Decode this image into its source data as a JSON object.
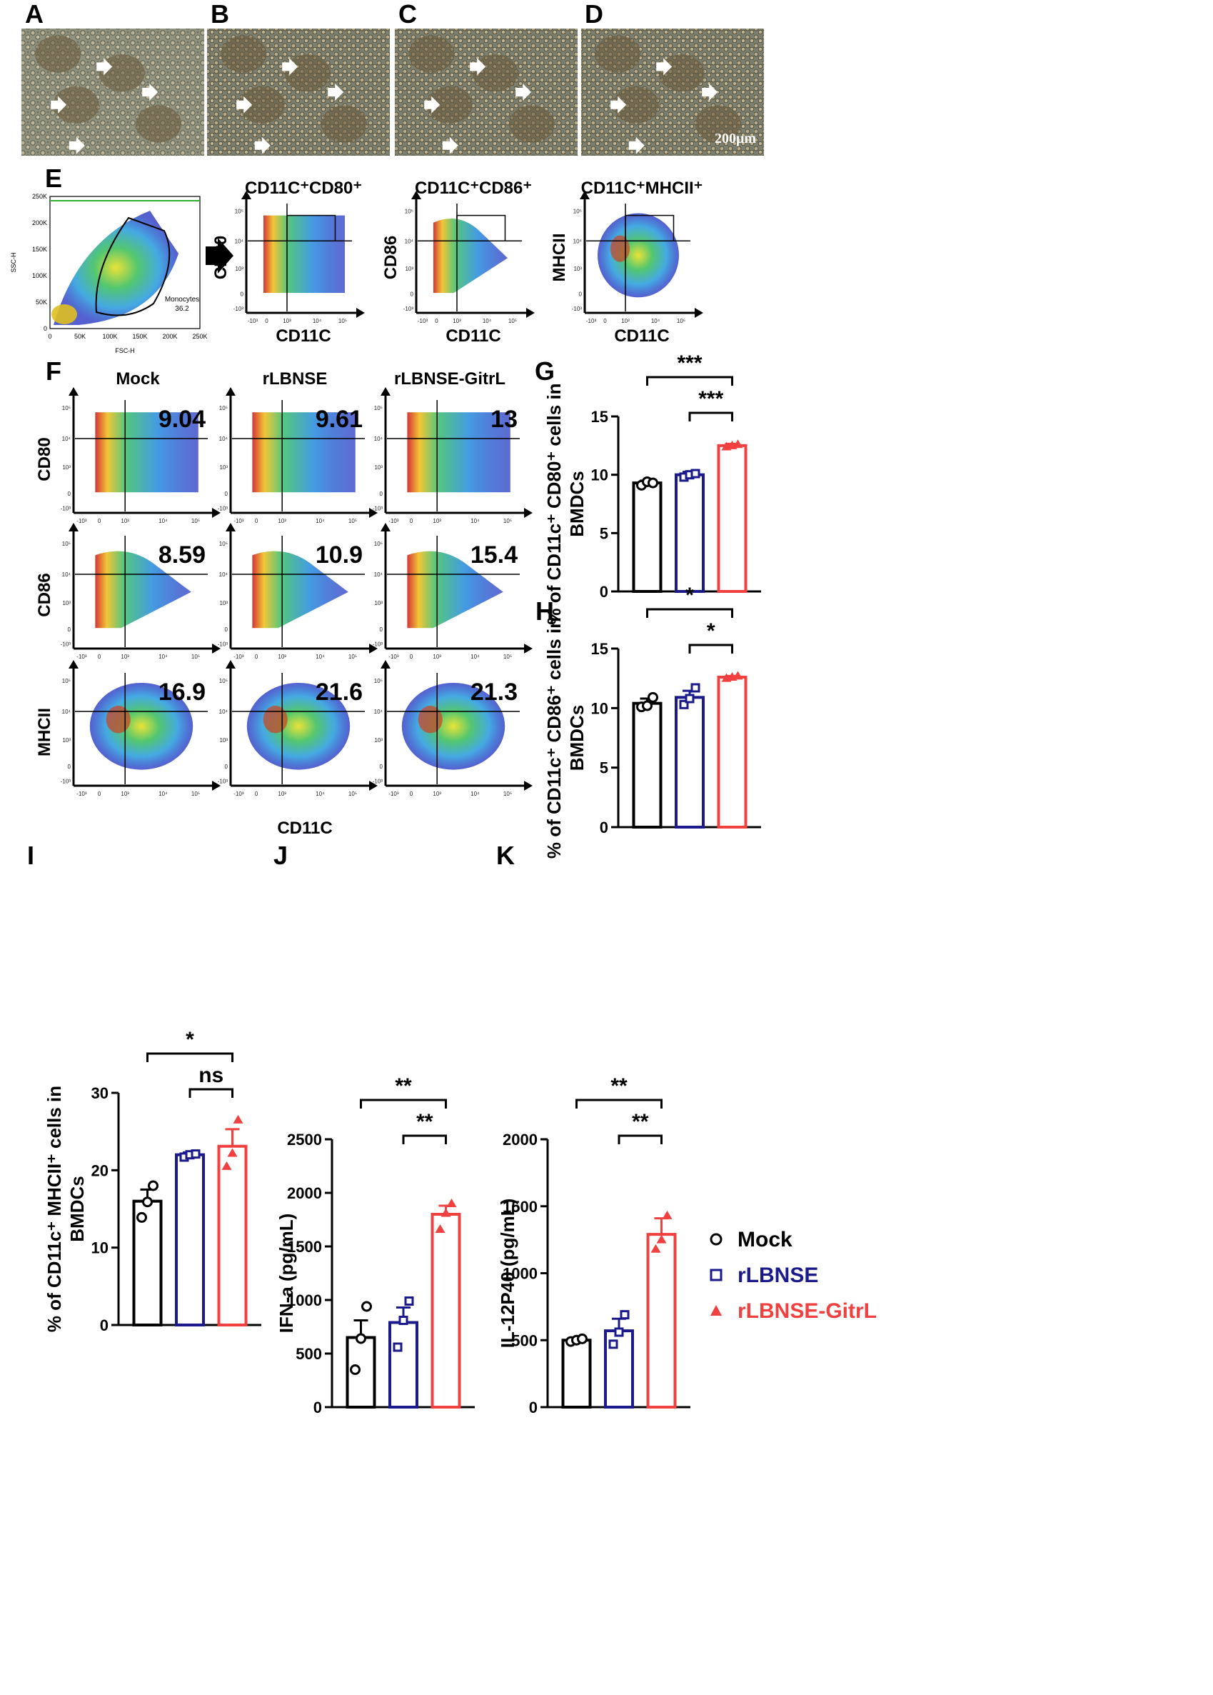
{
  "colors": {
    "mock": "#000000",
    "rlbnse": "#1a1a8c",
    "gitrl": "#f04040",
    "micro_bg": "#8a8f7a"
  },
  "micrographs": {
    "panels": [
      "A",
      "B",
      "C",
      "D"
    ],
    "scale_bar": "200μm"
  },
  "panel_e": {
    "letter": "E",
    "gate": {
      "x_label": "FSC-H",
      "y_label": "SSC-H",
      "gate_name": "Monocytes",
      "gate_value": "36.2",
      "x_ticks": [
        "0",
        "50K",
        "100K",
        "150K",
        "200K",
        "250K"
      ],
      "y_ticks": [
        "0",
        "50K",
        "100K",
        "150K",
        "200K",
        "250K"
      ]
    },
    "plots": [
      {
        "title": "CD11C⁺CD80⁺",
        "y_label": "CD80",
        "x_label": "CD11C",
        "shape": "rect"
      },
      {
        "title": "CD11C⁺CD86⁺",
        "y_label": "CD86",
        "x_label": "CD11C",
        "shape": "tri"
      },
      {
        "title": "CD11C⁺MHCII⁺",
        "y_label": "MHCII",
        "x_label": "CD11C",
        "shape": "blob"
      }
    ],
    "log_ticks_x": [
      "-10³",
      "0",
      "10³",
      "10⁴",
      "10⁵"
    ],
    "log_ticks_y": [
      "10⁵",
      "10⁴",
      "10³",
      "0",
      "-10³"
    ]
  },
  "panel_f": {
    "letter": "F",
    "columns": [
      "Mock",
      "rLBNSE",
      "rLBNSE-GitrL"
    ],
    "rows": [
      {
        "marker": "CD80",
        "values": [
          "9.04",
          "9.61",
          "13"
        ],
        "shape": "rect"
      },
      {
        "marker": "CD86",
        "values": [
          "8.59",
          "10.9",
          "15.4"
        ],
        "shape": "tri"
      },
      {
        "marker": "MHCII",
        "values": [
          "16.9",
          "21.6",
          "21.3"
        ],
        "shape": "blob"
      }
    ],
    "x_label": "CD11C"
  },
  "chart_data": [
    {
      "panel": "G",
      "type": "bar",
      "categories": [
        "Mock",
        "rLBNSE",
        "rLBNSE-GitrL"
      ],
      "values": [
        9.3,
        10.0,
        12.5
      ],
      "errors": [
        0.2,
        0.25,
        0.15
      ],
      "points": [
        [
          9.1,
          9.4,
          9.3
        ],
        [
          9.8,
          10.0,
          10.1
        ],
        [
          12.4,
          12.5,
          12.6
        ]
      ],
      "ylabel": "% of CD11c⁺ CD80⁺ cells in BMDCs",
      "ylim": [
        0,
        15
      ],
      "yticks": [
        0,
        5,
        10,
        15
      ],
      "significance": [
        {
          "from": 0,
          "to": 2,
          "label": "***"
        },
        {
          "from": 1,
          "to": 2,
          "label": "***"
        }
      ]
    },
    {
      "panel": "H",
      "type": "bar",
      "categories": [
        "Mock",
        "rLBNSE",
        "rLBNSE-GitrL"
      ],
      "values": [
        10.4,
        10.9,
        12.6
      ],
      "errors": [
        0.4,
        0.55,
        0.1
      ],
      "points": [
        [
          10.1,
          10.2,
          10.9
        ],
        [
          10.3,
          10.8,
          11.7
        ],
        [
          12.5,
          12.6,
          12.7
        ]
      ],
      "ylabel": "% of CD11c⁺ CD86⁺ cells in BMDCs",
      "ylim": [
        0,
        15
      ],
      "yticks": [
        0,
        5,
        10,
        15
      ],
      "significance": [
        {
          "from": 0,
          "to": 2,
          "label": "*"
        },
        {
          "from": 1,
          "to": 2,
          "label": "*"
        }
      ]
    },
    {
      "panel": "I",
      "type": "bar",
      "categories": [
        "Mock",
        "rLBNSE",
        "rLBNSE-GitrL"
      ],
      "values": [
        16.0,
        22.0,
        23.1
      ],
      "errors": [
        1.5,
        0.3,
        2.2
      ],
      "points": [
        [
          13.9,
          15.9,
          18.0
        ],
        [
          21.7,
          22.0,
          22.1
        ],
        [
          20.5,
          22.2,
          26.5
        ]
      ],
      "ylabel": "% of CD11c⁺ MHCII⁺ cells in BMDCs",
      "ylim": [
        0,
        30
      ],
      "yticks": [
        0,
        10,
        20,
        30
      ],
      "significance": [
        {
          "from": 0,
          "to": 2,
          "label": "*"
        },
        {
          "from": 1,
          "to": 2,
          "label": "ns"
        }
      ]
    },
    {
      "panel": "J",
      "type": "bar",
      "categories": [
        "Mock",
        "rLBNSE",
        "rLBNSE-GitrL"
      ],
      "values": [
        650,
        790,
        1800
      ],
      "errors": [
        160,
        140,
        80
      ],
      "points": [
        [
          350,
          640,
          940
        ],
        [
          560,
          810,
          990
        ],
        [
          1660,
          1810,
          1900
        ]
      ],
      "ylabel": "IFN-a (pg/mL)",
      "ylim": [
        0,
        2500
      ],
      "yticks": [
        0,
        500,
        1000,
        1500,
        2000,
        2500
      ],
      "significance": [
        {
          "from": 0,
          "to": 2,
          "label": "**"
        },
        {
          "from": 1,
          "to": 2,
          "label": "**"
        }
      ]
    },
    {
      "panel": "K",
      "type": "bar",
      "categories": [
        "Mock",
        "rLBNSE",
        "rLBNSE-GitrL"
      ],
      "values": [
        500,
        570,
        1290
      ],
      "errors": [
        20,
        90,
        120
      ],
      "points": [
        [
          490,
          500,
          510
        ],
        [
          470,
          560,
          690
        ],
        [
          1180,
          1250,
          1430
        ]
      ],
      "ylabel": "IL-12P40 (pg/mL)",
      "ylim": [
        0,
        2000
      ],
      "yticks": [
        0,
        500,
        1000,
        1500,
        2000
      ],
      "significance": [
        {
          "from": 0,
          "to": 2,
          "label": "**"
        },
        {
          "from": 1,
          "to": 2,
          "label": "**"
        }
      ]
    }
  ],
  "legend": [
    {
      "label": "Mock",
      "marker": "circle"
    },
    {
      "label": "rLBNSE",
      "marker": "square"
    },
    {
      "label": "rLBNSE-GitrL",
      "marker": "triangle"
    }
  ]
}
